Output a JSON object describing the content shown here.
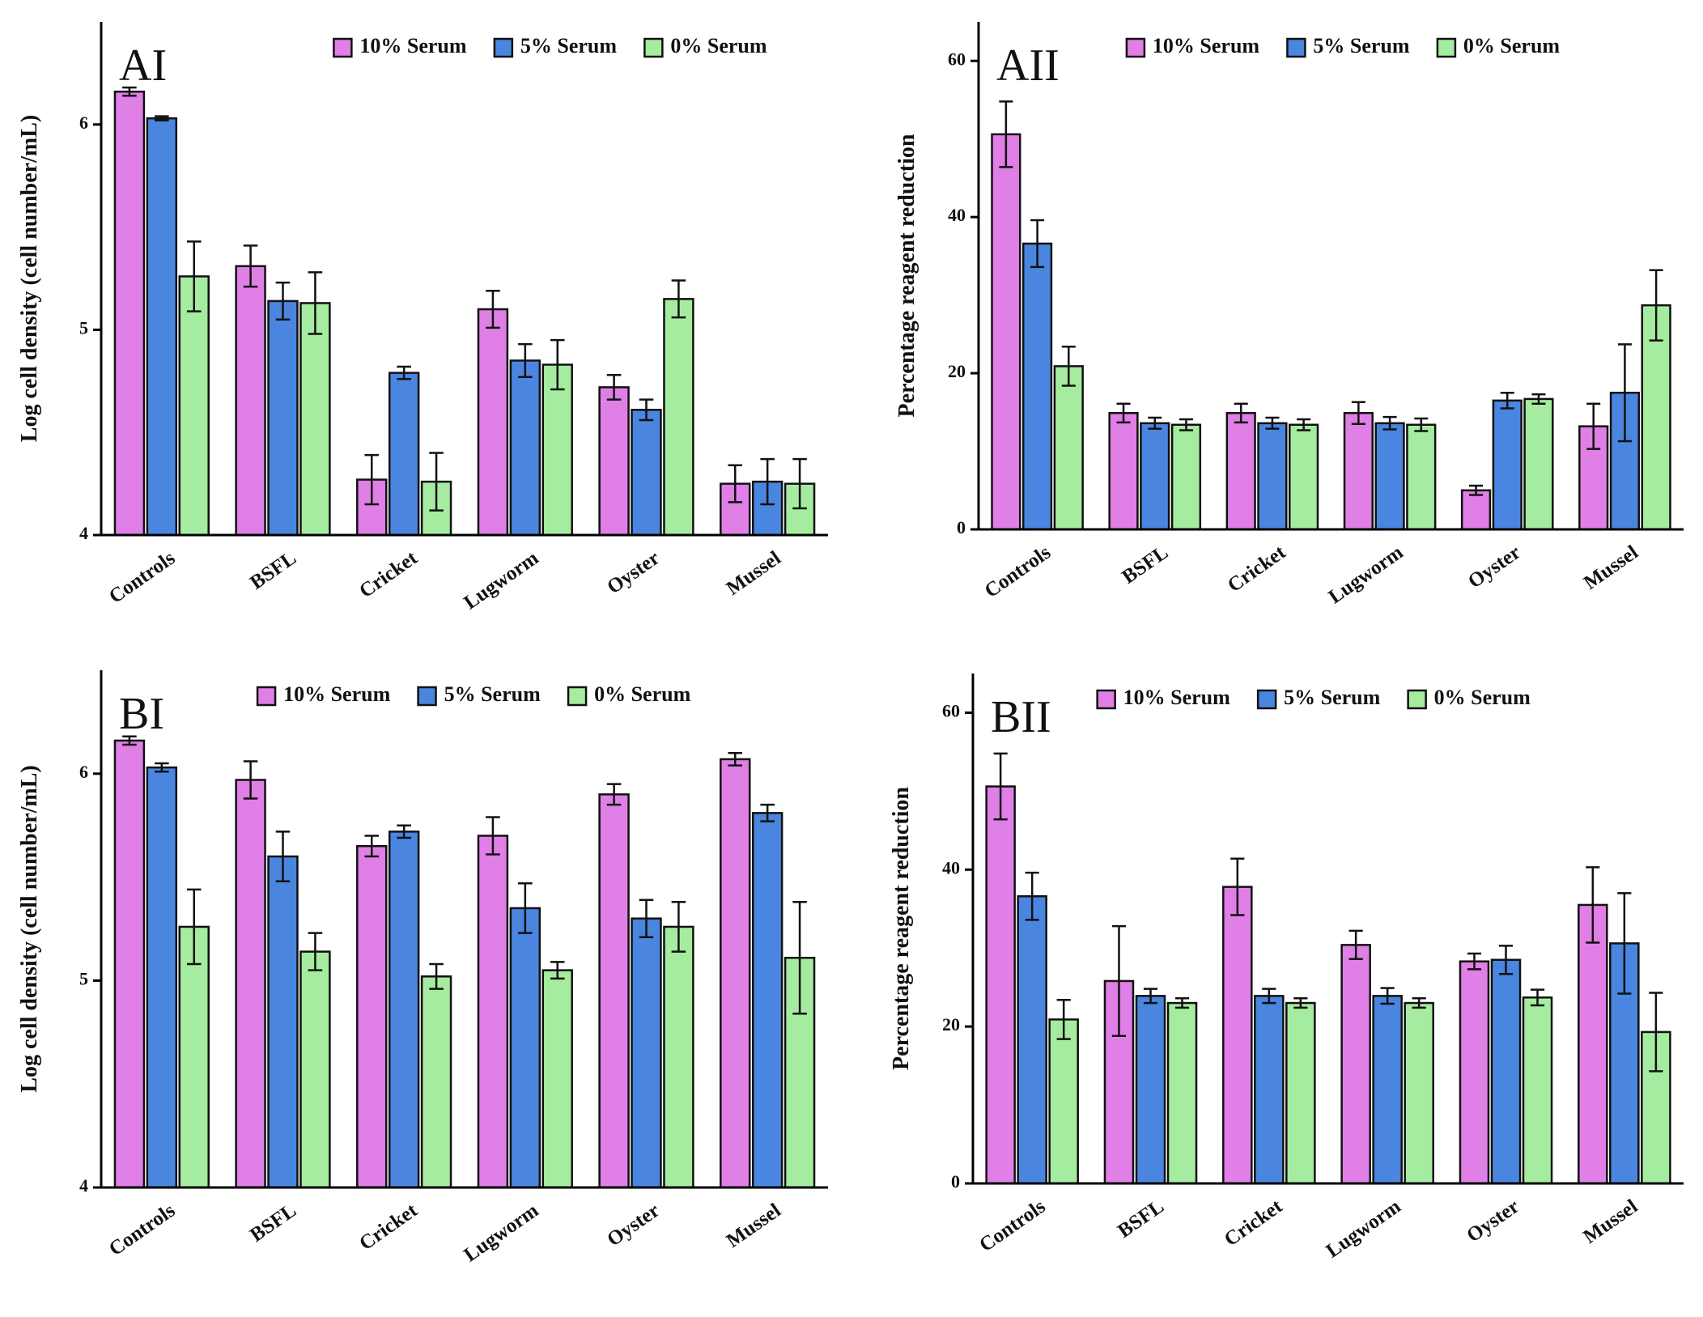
{
  "chart_data": [
    {
      "type": "bar",
      "title": "AI",
      "y_label": "Log cell density (cell number/mL)",
      "legend": "upper right",
      "categories": [
        "Controls",
        "BSFL",
        "Cricket",
        "Lugworm",
        "Oyster",
        "Mussel"
      ],
      "ylim": [
        4,
        6.5
      ],
      "yticks": [
        4,
        5,
        6
      ],
      "series": [
        {
          "name": "10% Serum",
          "color": "#e07fe6",
          "values": [
            6.16,
            5.31,
            4.27,
            5.1,
            4.72,
            4.25
          ],
          "errors": [
            0.02,
            0.1,
            0.12,
            0.09,
            0.06,
            0.09
          ]
        },
        {
          "name": "5% Serum",
          "color": "#4a86e0",
          "values": [
            6.03,
            5.14,
            4.79,
            4.85,
            4.61,
            4.26
          ],
          "errors": [
            0.01,
            0.09,
            0.03,
            0.08,
            0.05,
            0.11
          ]
        },
        {
          "name": "0% Serum",
          "color": "#a6eca0",
          "values": [
            5.26,
            5.13,
            4.26,
            4.83,
            5.15,
            4.25
          ],
          "errors": [
            0.17,
            0.15,
            0.14,
            0.12,
            0.09,
            0.12
          ]
        }
      ]
    },
    {
      "type": "bar",
      "title": "AII",
      "y_label": "Percentage reagent reduction",
      "legend": "upper right",
      "categories": [
        "Controls",
        "BSFL",
        "Cricket",
        "Lugworm",
        "Oyster",
        "Mussel"
      ],
      "ylim": [
        0,
        65
      ],
      "yticks": [
        0,
        20,
        40,
        60
      ],
      "series": [
        {
          "name": "10% Serum",
          "color": "#e07fe6",
          "values": [
            50.6,
            14.9,
            14.9,
            14.9,
            5,
            13.2
          ],
          "errors": [
            4.2,
            1.2,
            1.2,
            1.4,
            0.6,
            2.9
          ]
        },
        {
          "name": "5% Serum",
          "color": "#4a86e0",
          "values": [
            36.6,
            13.6,
            13.6,
            13.6,
            16.5,
            17.5
          ],
          "errors": [
            3,
            0.7,
            0.7,
            0.8,
            1,
            6.2
          ]
        },
        {
          "name": "0% Serum",
          "color": "#a6eca0",
          "values": [
            20.9,
            13.4,
            13.4,
            13.4,
            16.7,
            28.7
          ],
          "errors": [
            2.5,
            0.7,
            0.7,
            0.8,
            0.6,
            4.5
          ]
        }
      ]
    },
    {
      "type": "bar",
      "title": "BI",
      "y_label": "Log cell density (cell number/mL)",
      "legend": "upper right",
      "categories": [
        "Controls",
        "BSFL",
        "Cricket",
        "Lugworm",
        "Oyster",
        "Mussel"
      ],
      "ylim": [
        4,
        6.5
      ],
      "yticks": [
        4,
        5,
        6
      ],
      "series": [
        {
          "name": "10% Serum",
          "color": "#e07fe6",
          "values": [
            6.16,
            5.97,
            5.65,
            5.7,
            5.9,
            6.07
          ],
          "errors": [
            0.02,
            0.09,
            0.05,
            0.09,
            0.05,
            0.03
          ]
        },
        {
          "name": "5% Serum",
          "color": "#4a86e0",
          "values": [
            6.03,
            5.6,
            5.72,
            5.35,
            5.3,
            5.81
          ],
          "errors": [
            0.02,
            0.12,
            0.03,
            0.12,
            0.09,
            0.04
          ]
        },
        {
          "name": "0% Serum",
          "color": "#a6eca0",
          "values": [
            5.26,
            5.14,
            5.02,
            5.05,
            5.26,
            5.11
          ],
          "errors": [
            0.18,
            0.09,
            0.06,
            0.04,
            0.12,
            0.27
          ]
        }
      ]
    },
    {
      "type": "bar",
      "title": "BII",
      "y_label": "Percentage reagent reduction",
      "legend": "upper right",
      "categories": [
        "Controls",
        "BSFL",
        "Cricket",
        "Lugworm",
        "Oyster",
        "Mussel"
      ],
      "ylim": [
        0,
        65
      ],
      "yticks": [
        0,
        20,
        40,
        60
      ],
      "series": [
        {
          "name": "10% Serum",
          "color": "#e07fe6",
          "values": [
            50.6,
            25.8,
            37.8,
            30.4,
            28.3,
            35.5
          ],
          "errors": [
            4.2,
            7,
            3.6,
            1.8,
            1,
            4.8
          ]
        },
        {
          "name": "5% Serum",
          "color": "#4a86e0",
          "values": [
            36.6,
            23.9,
            23.9,
            23.9,
            28.5,
            30.6
          ],
          "errors": [
            3,
            0.9,
            0.9,
            1,
            1.8,
            6.4
          ]
        },
        {
          "name": "0% Serum",
          "color": "#a6eca0",
          "values": [
            20.9,
            23,
            23,
            23,
            23.7,
            19.3
          ],
          "errors": [
            2.5,
            0.6,
            0.6,
            0.6,
            1,
            5
          ]
        }
      ]
    }
  ]
}
